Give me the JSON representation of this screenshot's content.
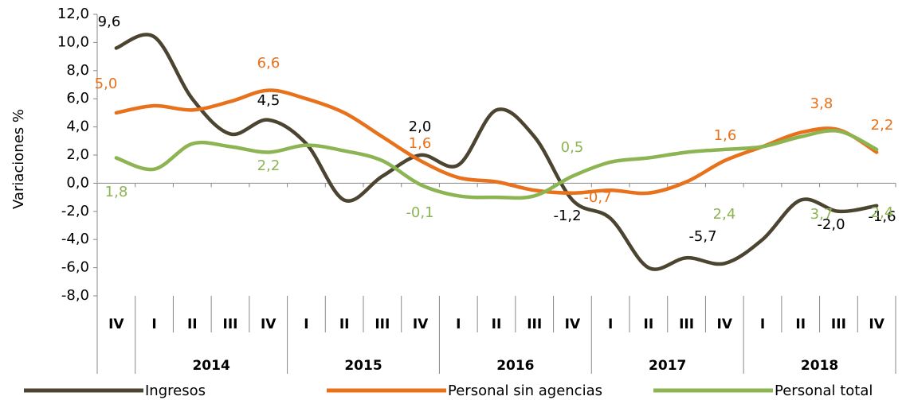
{
  "chart_data": {
    "type": "line",
    "y_label": "Variaciones %",
    "categories": [
      "IV",
      "I",
      "II",
      "III",
      "IV",
      "I",
      "II",
      "III",
      "IV",
      "I",
      "II",
      "III",
      "IV",
      "I",
      "II",
      "III",
      "IV",
      "I",
      "II",
      "III",
      "IV"
    ],
    "groups": [
      null,
      "2014",
      "2014",
      "2014",
      "2014",
      "2015",
      "2015",
      "2015",
      "2015",
      "2016",
      "2016",
      "2016",
      "2016",
      "2017",
      "2017",
      "2017",
      "2017",
      "2018",
      "2018",
      "2018",
      "2018"
    ],
    "ylim": [
      -8,
      12
    ],
    "yticks": [
      {
        "value": -8,
        "label": "-8,0"
      },
      {
        "value": -6,
        "label": "-6,0"
      },
      {
        "value": -4,
        "label": "-4,0"
      },
      {
        "value": -2,
        "label": "-2,0"
      },
      {
        "value": 0,
        "label": "0,0"
      },
      {
        "value": 2,
        "label": "2,0"
      },
      {
        "value": 4,
        "label": "4,0"
      },
      {
        "value": 6,
        "label": "6,0"
      },
      {
        "value": 8,
        "label": "8,0"
      },
      {
        "value": 10,
        "label": "10,0"
      },
      {
        "value": 12,
        "label": "12,0"
      }
    ],
    "legend": "bottom",
    "series": [
      {
        "name": "Ingresos",
        "color": "#4b4431",
        "values": [
          9.6,
          10.4,
          6.0,
          3.5,
          4.5,
          2.8,
          -1.2,
          0.5,
          2.0,
          1.3,
          5.2,
          3.3,
          -1.2,
          -2.5,
          -6.0,
          -5.3,
          -5.7,
          -4.0,
          -1.2,
          -2.0,
          -1.6
        ],
        "value_labels": [
          "9,6",
          null,
          null,
          null,
          "4,5",
          null,
          null,
          null,
          "2,0",
          null,
          null,
          null,
          "-1,2",
          null,
          null,
          null,
          "-5,7",
          null,
          null,
          "-2,0",
          "-1,6"
        ]
      },
      {
        "name": "Personal sin agencias",
        "color": "#e8711b",
        "values": [
          5.0,
          5.5,
          5.2,
          5.8,
          6.6,
          6.0,
          5.0,
          3.3,
          1.6,
          0.4,
          0.1,
          -0.5,
          -0.7,
          -0.5,
          -0.7,
          0.1,
          1.6,
          2.6,
          3.6,
          3.8,
          2.2
        ],
        "value_labels": [
          "5,0",
          null,
          null,
          null,
          "6,6",
          null,
          null,
          null,
          "1,6",
          null,
          null,
          null,
          "-0,7",
          null,
          null,
          null,
          "1,6",
          null,
          null,
          "3,8",
          "2,2"
        ]
      },
      {
        "name": "Personal total",
        "color": "#8db453",
        "values": [
          1.8,
          1.0,
          2.8,
          2.6,
          2.2,
          2.7,
          2.3,
          1.6,
          -0.1,
          -0.9,
          -1.0,
          -0.9,
          0.5,
          1.5,
          1.8,
          2.2,
          2.4,
          2.6,
          3.3,
          3.7,
          2.4
        ],
        "value_labels": [
          "1,8",
          null,
          null,
          null,
          "2,2",
          null,
          null,
          null,
          "-0,1",
          null,
          null,
          null,
          "0,5",
          null,
          null,
          null,
          "2,4",
          null,
          null,
          "3,7",
          "2,4"
        ]
      }
    ]
  }
}
